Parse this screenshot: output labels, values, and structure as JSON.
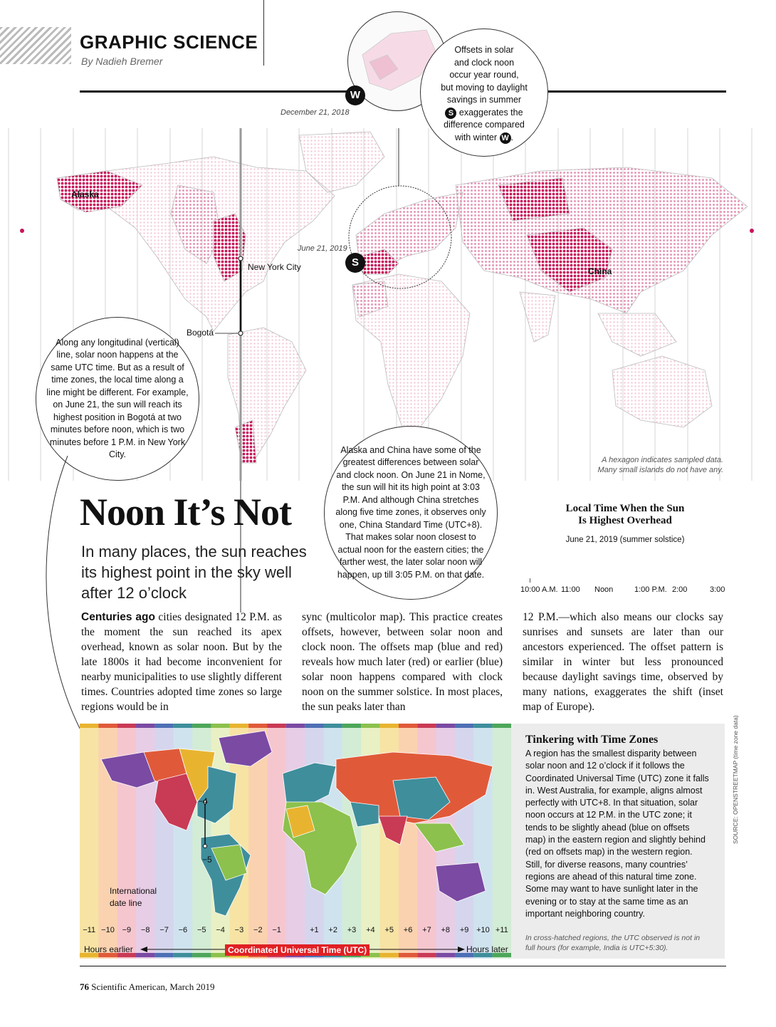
{
  "header": {
    "department": "GRAPHIC SCIENCE",
    "byline": "By Nadieh Bremer"
  },
  "map": {
    "inset_winter_date": "December 21, 2018",
    "inset_summer_date": "June 21, 2019",
    "winter_badge": "W",
    "summer_badge": "S",
    "label_alaska": "Alaska",
    "label_china": "China",
    "label_new_york": "New York City",
    "label_bogota": "Bogotá",
    "hexagon_caption_1": "A hexagon indicates sampled data.",
    "hexagon_caption_2": "Many small islands do not have any."
  },
  "callouts": {
    "europe_inset_1": "Offsets in solar",
    "europe_inset_2": "and clock noon",
    "europe_inset_3": "occur year round,",
    "europe_inset_4": "but moving to daylight",
    "europe_inset_5": "savings in summer",
    "europe_inset_6": "exaggerates the",
    "europe_inset_7": "difference compared",
    "europe_inset_8": "with winter",
    "longitude": "Along any longitudinal (vertical) line, solar noon happens at the same UTC time. But as a result of time zones, the local time along a line might be different. For example, on June 21, the sun will reach its highest position in Bogotá at two minutes before noon, which is two minutes before 1 P.M. in New York City.",
    "alaska_china": "Alaska and China have some of the greatest differences between solar and clock noon. On June 21 in Nome, the sun will hit its high point at 3:03 P.M. And although China stretches along five time zones, it observes only one, China Standard Time (UTC+8). That makes solar noon closest to actual noon for the eastern cities; the farther west, the later solar noon will happen, up till 3:05 P.M. on that date."
  },
  "article": {
    "headline": "Noon It’s Not",
    "subhead": "In many places, the sun reaches its highest point in the sky well after 12 o’clock",
    "lead_in": "Centuries ago",
    "col1": " cities designated 12 P.M. as the moment the sun reached its apex overhead, known as solar noon. But by the late 1800s it had become inconvenient for nearby municipalities to use slightly different times. Countries adopted time zones so large regions would be in",
    "col2": "sync (multicolor map). This practice creates offsets, however, between solar noon and clock noon. The offsets map (blue and red) reveals how much later (red) or earlier (blue) solar noon happens compared with clock noon on the summer solstice. In most places, the sun peaks later than",
    "col3": "12 P.M.—which also means our clocks say sunrises and sunsets are later than our ancestors experienced. The offset pattern is similar in winter but less pronounced because daylight savings time, observed by many nations, exaggerates the shift (inset map of Europe)."
  },
  "legend": {
    "title_1": "Local Time When the Sun",
    "title_2": "Is Highest Overhead",
    "subtitle": "June 21, 2019 (summer solstice)",
    "ticks": [
      "10:00 A.M.",
      "11:00",
      "Noon",
      "1:00 P.M.",
      "2:00",
      "3:00"
    ],
    "colors": {
      "early": "#3a66b0",
      "noon": "#ffffff",
      "late": "#c8145a"
    }
  },
  "timezones": {
    "offsets": [
      "−11",
      "−10",
      "−9",
      "−8",
      "−7",
      "−6",
      "−5",
      "−4",
      "−3",
      "−2",
      "−1",
      "",
      "+1",
      "+2",
      "+3",
      "+4",
      "+5",
      "+6",
      "+7",
      "+8",
      "+9",
      "+10",
      "+11"
    ],
    "marker_top": "−4",
    "marker_bottom": "−5",
    "dateline_1": "International",
    "dateline_2": "date line",
    "hours_earlier": "Hours earlier",
    "hours_later": "Hours later",
    "utc_label": "Coordinated Universal Time (UTC)"
  },
  "sidebar": {
    "title": "Tinkering with Time Zones",
    "body": "A region has the smallest disparity between solar noon and 12 o’clock if it follows the Coordinated Universal Time (UTC) zone it falls in. West Australia, for example, aligns almost perfectly with UTC+8. In that situation, solar noon occurs at 12 P.M. in the UTC zone; it tends to be slightly ahead (blue on offsets map) in the eastern region and slightly behind (red on offsets map) in the western region. Still, for diverse reasons, many countries’ regions are ahead of this natural time zone. Some may want to have sunlight later in the evening or to stay at the same time as an important neighboring country.",
    "note": "In cross-hatched regions, the UTC observed is not in full hours (for example, India is UTC+5:30).",
    "source": "SOURCE: OPENSTREETMAP (time zone data)"
  },
  "footer": {
    "page": "76",
    "publication": "Scientific American, March 2019"
  }
}
